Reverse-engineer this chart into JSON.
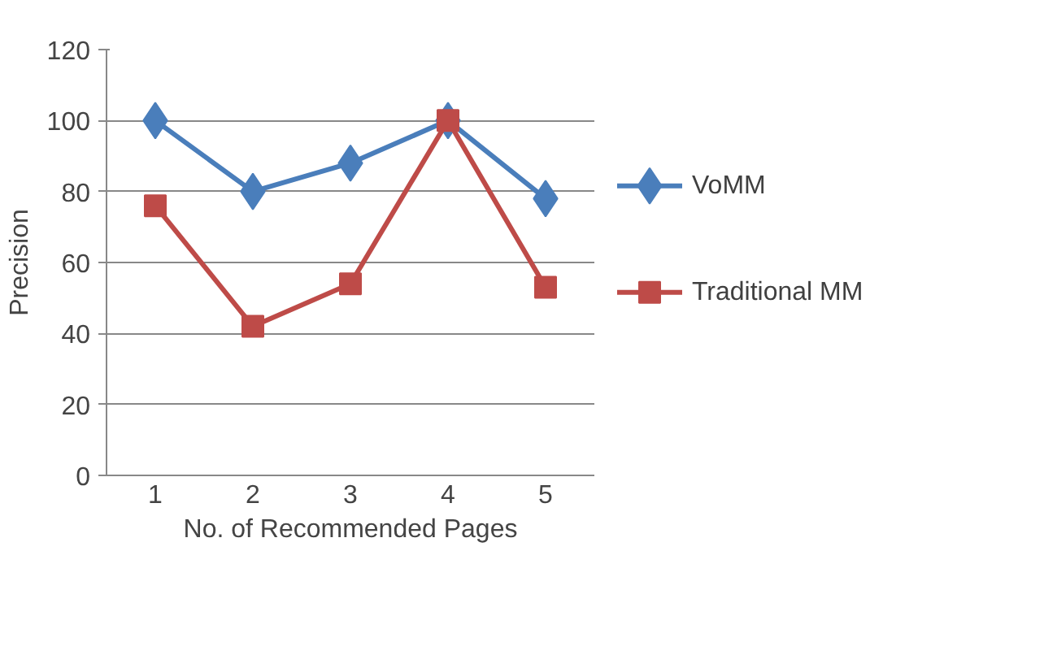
{
  "chart_data": {
    "type": "line",
    "xlabel": "No. of Recommended Pages",
    "ylabel": "Precision",
    "categories": [
      "1",
      "2",
      "3",
      "4",
      "5"
    ],
    "series": [
      {
        "name": "VoMM",
        "color": "#4a7ebb",
        "marker": "diamond",
        "values": [
          100,
          80,
          88,
          100,
          78
        ]
      },
      {
        "name": "Traditional MM",
        "color": "#be4b48",
        "marker": "square",
        "values": [
          76,
          42,
          54,
          100,
          53
        ]
      }
    ],
    "ylim": [
      0,
      120
    ],
    "yticks": [
      0,
      20,
      40,
      60,
      80,
      100,
      120
    ],
    "grid": "y",
    "legend": "right"
  }
}
